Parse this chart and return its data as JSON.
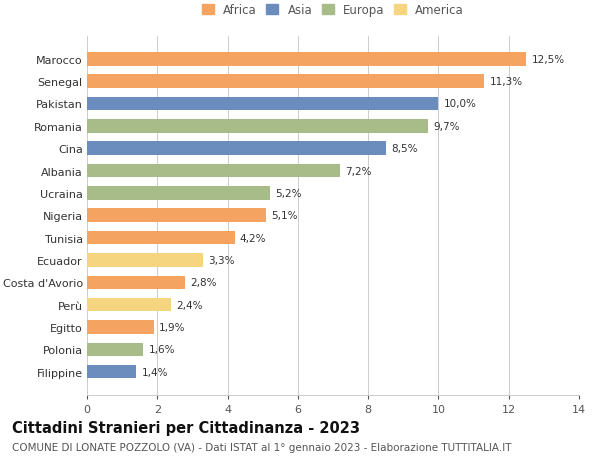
{
  "categories": [
    "Marocco",
    "Senegal",
    "Pakistan",
    "Romania",
    "Cina",
    "Albania",
    "Ucraina",
    "Nigeria",
    "Tunisia",
    "Ecuador",
    "Costa d'Avorio",
    "Perù",
    "Egitto",
    "Polonia",
    "Filippine"
  ],
  "values": [
    12.5,
    11.3,
    10.0,
    9.7,
    8.5,
    7.2,
    5.2,
    5.1,
    4.2,
    3.3,
    2.8,
    2.4,
    1.9,
    1.6,
    1.4
  ],
  "labels": [
    "12,5%",
    "11,3%",
    "10,0%",
    "9,7%",
    "8,5%",
    "7,2%",
    "5,2%",
    "5,1%",
    "4,2%",
    "3,3%",
    "2,8%",
    "2,4%",
    "1,9%",
    "1,6%",
    "1,4%"
  ],
  "continents": [
    "Africa",
    "Africa",
    "Asia",
    "Europa",
    "Asia",
    "Europa",
    "Europa",
    "Africa",
    "Africa",
    "America",
    "Africa",
    "America",
    "Africa",
    "Europa",
    "Asia"
  ],
  "continent_colors": {
    "Africa": "#F4A460",
    "Asia": "#6B8DBE",
    "Europa": "#A8BC8A",
    "America": "#F5D580"
  },
  "legend_order": [
    "Africa",
    "Asia",
    "Europa",
    "America"
  ],
  "xlim": [
    0,
    14
  ],
  "xticks": [
    0,
    2,
    4,
    6,
    8,
    10,
    12,
    14
  ],
  "title": "Cittadini Stranieri per Cittadinanza - 2023",
  "subtitle": "COMUNE DI LONATE POZZOLO (VA) - Dati ISTAT al 1° gennaio 2023 - Elaborazione TUTTITALIA.IT",
  "title_fontsize": 10.5,
  "subtitle_fontsize": 7.5,
  "background_color": "#ffffff",
  "grid_color": "#cccccc",
  "bar_height": 0.6
}
